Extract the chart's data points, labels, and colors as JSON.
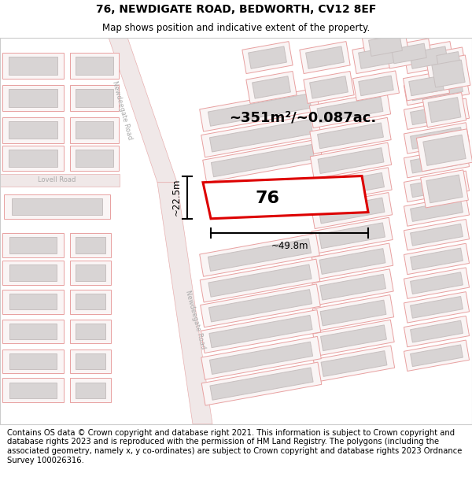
{
  "title_line1": "76, NEWDIGATE ROAD, BEDWORTH, CV12 8EF",
  "title_line2": "Map shows position and indicative extent of the property.",
  "area_label": "~351m²/~0.087ac.",
  "number_label": "76",
  "dim_width": "~49.8m",
  "dim_height": "~22.5m",
  "footer_text": "Contains OS data © Crown copyright and database right 2021. This information is subject to Crown copyright and database rights 2023 and is reproduced with the permission of HM Land Registry. The polygons (including the associated geometry, namely x, y co-ordinates) are subject to Crown copyright and database rights 2023 Ordnance Survey 100026316.",
  "map_bg": "#ffffff",
  "road_fill": "#f0e8e8",
  "road_edge": "#e8b0b0",
  "plot_edge": "#e8a0a0",
  "plot_fill": "#faf5f5",
  "building_fill": "#d8d4d4",
  "building_edge": "#c8c0c0",
  "main_plot_edge": "#dd0000",
  "main_plot_fill": "#ffffff",
  "title_fontsize": 10,
  "subtitle_fontsize": 8.5,
  "footer_fontsize": 7.2,
  "road_label_color": "#aaaaaa",
  "lovell_label_color": "#aaaaaa"
}
